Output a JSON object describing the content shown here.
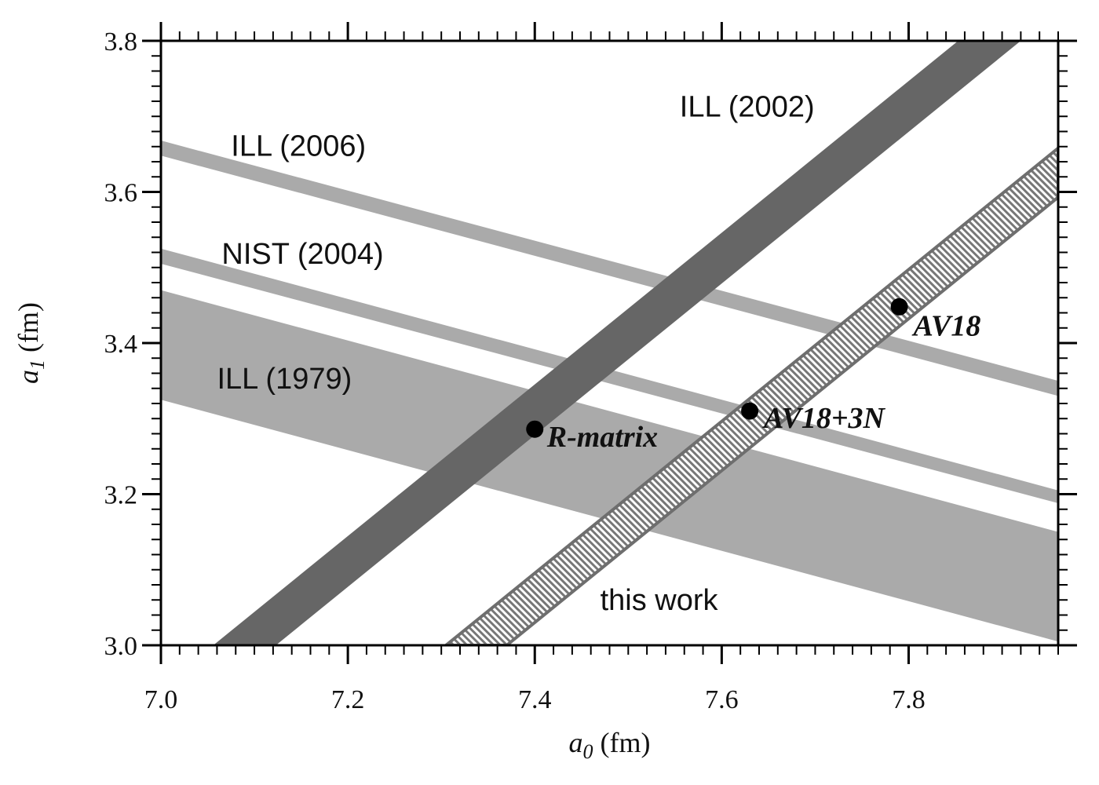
{
  "chart_data": {
    "type": "scatter",
    "xlabel": "a0 (fm)",
    "xlabel_main": "a",
    "xlabel_sub": "0",
    "xlabel_unit": " (fm)",
    "ylabel": "a1 (fm)",
    "ylabel_main": "a",
    "ylabel_sub": "1",
    "ylabel_unit": " (fm)",
    "xlim": [
      7.0,
      7.96
    ],
    "ylim": [
      3.0,
      3.8
    ],
    "xticks": [
      7.0,
      7.2,
      7.4,
      7.6,
      7.8
    ],
    "xtick_labels": [
      "7.0",
      "7.2",
      "7.4",
      "7.6",
      "7.8"
    ],
    "yticks": [
      3.0,
      3.2,
      3.4,
      3.6,
      3.8
    ],
    "ytick_labels": [
      "3.0",
      "3.2",
      "3.4",
      "3.6",
      "3.8"
    ],
    "grid": false,
    "bands": [
      {
        "label": "ILL (1979)",
        "label_pos": [
          7.06,
          3.34
        ],
        "fill": "#aaaaaa",
        "pattern": "none",
        "lower": [
          [
            7.0,
            3.325
          ],
          [
            7.96,
            3.005
          ]
        ],
        "upper": [
          [
            7.0,
            3.47
          ],
          [
            7.96,
            3.15
          ]
        ]
      },
      {
        "label": "NIST (2004)",
        "label_pos": [
          7.065,
          3.505
        ],
        "fill": "#aaaaaa",
        "pattern": "none",
        "lower": [
          [
            7.0,
            3.505
          ],
          [
            7.96,
            3.188
          ]
        ],
        "upper": [
          [
            7.0,
            3.525
          ],
          [
            7.96,
            3.205
          ]
        ]
      },
      {
        "label": "ILL (2006)",
        "label_pos": [
          7.075,
          3.648
        ],
        "fill": "#aaaaaa",
        "pattern": "none",
        "lower": [
          [
            7.0,
            3.648
          ],
          [
            7.96,
            3.33
          ]
        ],
        "upper": [
          [
            7.0,
            3.668
          ],
          [
            7.96,
            3.35
          ]
        ]
      },
      {
        "label": "ILL (2002)",
        "label_pos": [
          7.555,
          3.7
        ],
        "fill": "#666666",
        "pattern": "none",
        "lower": [
          [
            7.123,
            3.0
          ],
          [
            7.92,
            3.8
          ]
        ],
        "upper": [
          [
            7.056,
            3.0
          ],
          [
            7.853,
            3.8
          ]
        ]
      },
      {
        "label": "this work",
        "label_pos": [
          7.47,
          3.047
        ],
        "fill": "#ffffff",
        "pattern": "hatch",
        "lower": [
          [
            7.37,
            3.0
          ],
          [
            7.96,
            3.593
          ]
        ],
        "upper": [
          [
            7.305,
            3.0
          ],
          [
            7.96,
            3.658
          ]
        ]
      }
    ],
    "points": [
      {
        "label": "R-matrix",
        "x": 7.4,
        "y": 3.286,
        "label_pos": [
          7.413,
          3.263
        ]
      },
      {
        "label": "AV18+3N",
        "x": 7.63,
        "y": 3.31,
        "label_pos": [
          7.645,
          3.288
        ]
      },
      {
        "label": "AV18",
        "x": 7.79,
        "y": 3.448,
        "label_pos": [
          7.805,
          3.41
        ]
      }
    ]
  }
}
